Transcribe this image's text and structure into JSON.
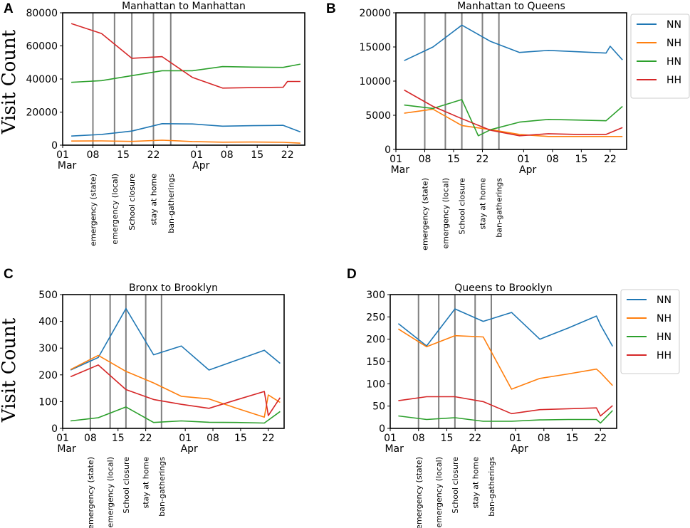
{
  "figure": {
    "ylabel": "Visit Count",
    "event_labels": [
      "emergency (state)",
      "emergency (local)",
      "School closure",
      "stay at home",
      "ban-gatherings"
    ],
    "event_days": [
      7,
      12,
      16,
      21,
      25
    ],
    "x_tick_days": [
      0,
      7,
      14,
      21,
      31,
      38,
      45,
      52
    ],
    "x_tick_labels": [
      "01",
      "08",
      "15",
      "22",
      "01",
      "08",
      "15",
      "22"
    ],
    "month_labels": [
      {
        "day": 1,
        "text": "Mar"
      },
      {
        "day": 32,
        "text": "Apr"
      }
    ],
    "series_colors": {
      "NN": "#1f77b4",
      "NH": "#ff7f0e",
      "HN": "#2ca02c",
      "HH": "#d62728"
    }
  },
  "chart_data": [
    {
      "panel": "A",
      "type": "line",
      "title": "Manhattan to Manhattan",
      "xlabel": "",
      "ylabel": "Visit Count",
      "ylim": [
        0,
        80000
      ],
      "xlim": [
        0,
        56
      ],
      "yticks": [
        0,
        20000,
        40000,
        60000,
        80000
      ],
      "legend": false,
      "series": [
        {
          "name": "NN",
          "x": [
            2,
            9,
            16,
            23,
            30,
            37,
            44,
            51,
            55
          ],
          "values": [
            5500,
            6500,
            8500,
            13000,
            12800,
            11500,
            11800,
            12000,
            8000
          ]
        },
        {
          "name": "NH",
          "x": [
            2,
            9,
            16,
            23,
            30,
            37,
            44,
            51,
            55
          ],
          "values": [
            2500,
            2600,
            2300,
            3000,
            2200,
            1800,
            1900,
            1700,
            1200
          ]
        },
        {
          "name": "HN",
          "x": [
            2,
            9,
            16,
            23,
            30,
            37,
            44,
            51,
            55
          ],
          "values": [
            38000,
            39000,
            42000,
            45000,
            45000,
            47500,
            47200,
            47000,
            49000
          ]
        },
        {
          "name": "HH",
          "x": [
            2,
            9,
            16,
            23,
            30,
            37,
            44,
            51,
            52,
            55
          ],
          "values": [
            73500,
            67500,
            52500,
            53500,
            41000,
            34500,
            34800,
            35000,
            38500,
            38500
          ]
        }
      ]
    },
    {
      "panel": "B",
      "type": "line",
      "title": "Manhattan to Queens",
      "xlabel": "",
      "ylabel": "",
      "ylim": [
        0,
        20000
      ],
      "xlim": [
        0,
        56
      ],
      "yticks": [
        0,
        5000,
        10000,
        15000,
        20000
      ],
      "legend": true,
      "legend_position": "right",
      "series": [
        {
          "name": "NN",
          "x": [
            2,
            9,
            16,
            23,
            30,
            37,
            44,
            51,
            52,
            55
          ],
          "values": [
            13000,
            15000,
            18200,
            15800,
            14200,
            14500,
            14300,
            14100,
            15100,
            13100
          ]
        },
        {
          "name": "NH",
          "x": [
            2,
            9,
            16,
            23,
            30,
            37,
            44,
            51,
            55
          ],
          "values": [
            5300,
            5900,
            3500,
            2900,
            2200,
            1900,
            1900,
            1900,
            1900
          ]
        },
        {
          "name": "HN",
          "x": [
            2,
            9,
            16,
            20,
            23,
            30,
            37,
            44,
            51,
            55
          ],
          "values": [
            6500,
            6000,
            7300,
            2000,
            2900,
            4000,
            4400,
            4300,
            4200,
            6300
          ]
        },
        {
          "name": "HH",
          "x": [
            2,
            9,
            16,
            23,
            30,
            37,
            44,
            51,
            55
          ],
          "values": [
            8700,
            6300,
            4500,
            2800,
            2000,
            2300,
            2200,
            2200,
            3200
          ]
        }
      ]
    },
    {
      "panel": "C",
      "type": "line",
      "title": "Bronx to Brooklyn",
      "xlabel": "",
      "ylabel": "Visit Count",
      "ylim": [
        0,
        500
      ],
      "xlim": [
        0,
        56
      ],
      "yticks": [
        0,
        100,
        200,
        300,
        400,
        500
      ],
      "legend": false,
      "series": [
        {
          "name": "NN",
          "x": [
            2,
            9,
            16,
            23,
            30,
            37,
            44,
            51,
            55
          ],
          "values": [
            218,
            265,
            448,
            275,
            308,
            218,
            255,
            292,
            243
          ]
        },
        {
          "name": "NH",
          "x": [
            2,
            9,
            16,
            23,
            30,
            37,
            44,
            51,
            52,
            55
          ],
          "values": [
            220,
            273,
            213,
            170,
            120,
            110,
            75,
            42,
            125,
            97
          ]
        },
        {
          "name": "HN",
          "x": [
            2,
            9,
            16,
            23,
            30,
            37,
            44,
            51,
            55
          ],
          "values": [
            28,
            40,
            80,
            22,
            28,
            23,
            22,
            20,
            63
          ]
        },
        {
          "name": "HH",
          "x": [
            2,
            9,
            16,
            23,
            30,
            37,
            44,
            51,
            52,
            55
          ],
          "values": [
            193,
            237,
            145,
            108,
            90,
            75,
            107,
            138,
            48,
            115
          ]
        }
      ]
    },
    {
      "panel": "D",
      "type": "line",
      "title": "Queens to Brooklyn",
      "xlabel": "",
      "ylabel": "",
      "ylim": [
        0,
        300
      ],
      "xlim": [
        0,
        56
      ],
      "yticks": [
        0,
        50,
        100,
        150,
        200,
        250,
        300
      ],
      "legend": true,
      "legend_position": "right",
      "series": [
        {
          "name": "NN",
          "x": [
            2,
            9,
            16,
            23,
            30,
            37,
            44,
            51,
            52,
            55
          ],
          "values": [
            235,
            185,
            268,
            240,
            260,
            200,
            225,
            252,
            232,
            184
          ]
        },
        {
          "name": "NH",
          "x": [
            2,
            9,
            16,
            23,
            30,
            37,
            44,
            51,
            52,
            55
          ],
          "values": [
            223,
            183,
            208,
            205,
            88,
            112,
            122,
            133,
            125,
            96
          ]
        },
        {
          "name": "HN",
          "x": [
            2,
            9,
            16,
            23,
            30,
            37,
            44,
            51,
            52,
            55
          ],
          "values": [
            28,
            20,
            24,
            16,
            16,
            19,
            20,
            20,
            12,
            40
          ]
        },
        {
          "name": "HH",
          "x": [
            2,
            9,
            16,
            23,
            30,
            37,
            44,
            51,
            52,
            55
          ],
          "values": [
            62,
            71,
            71,
            60,
            33,
            42,
            44,
            46,
            28,
            51
          ]
        }
      ]
    }
  ]
}
